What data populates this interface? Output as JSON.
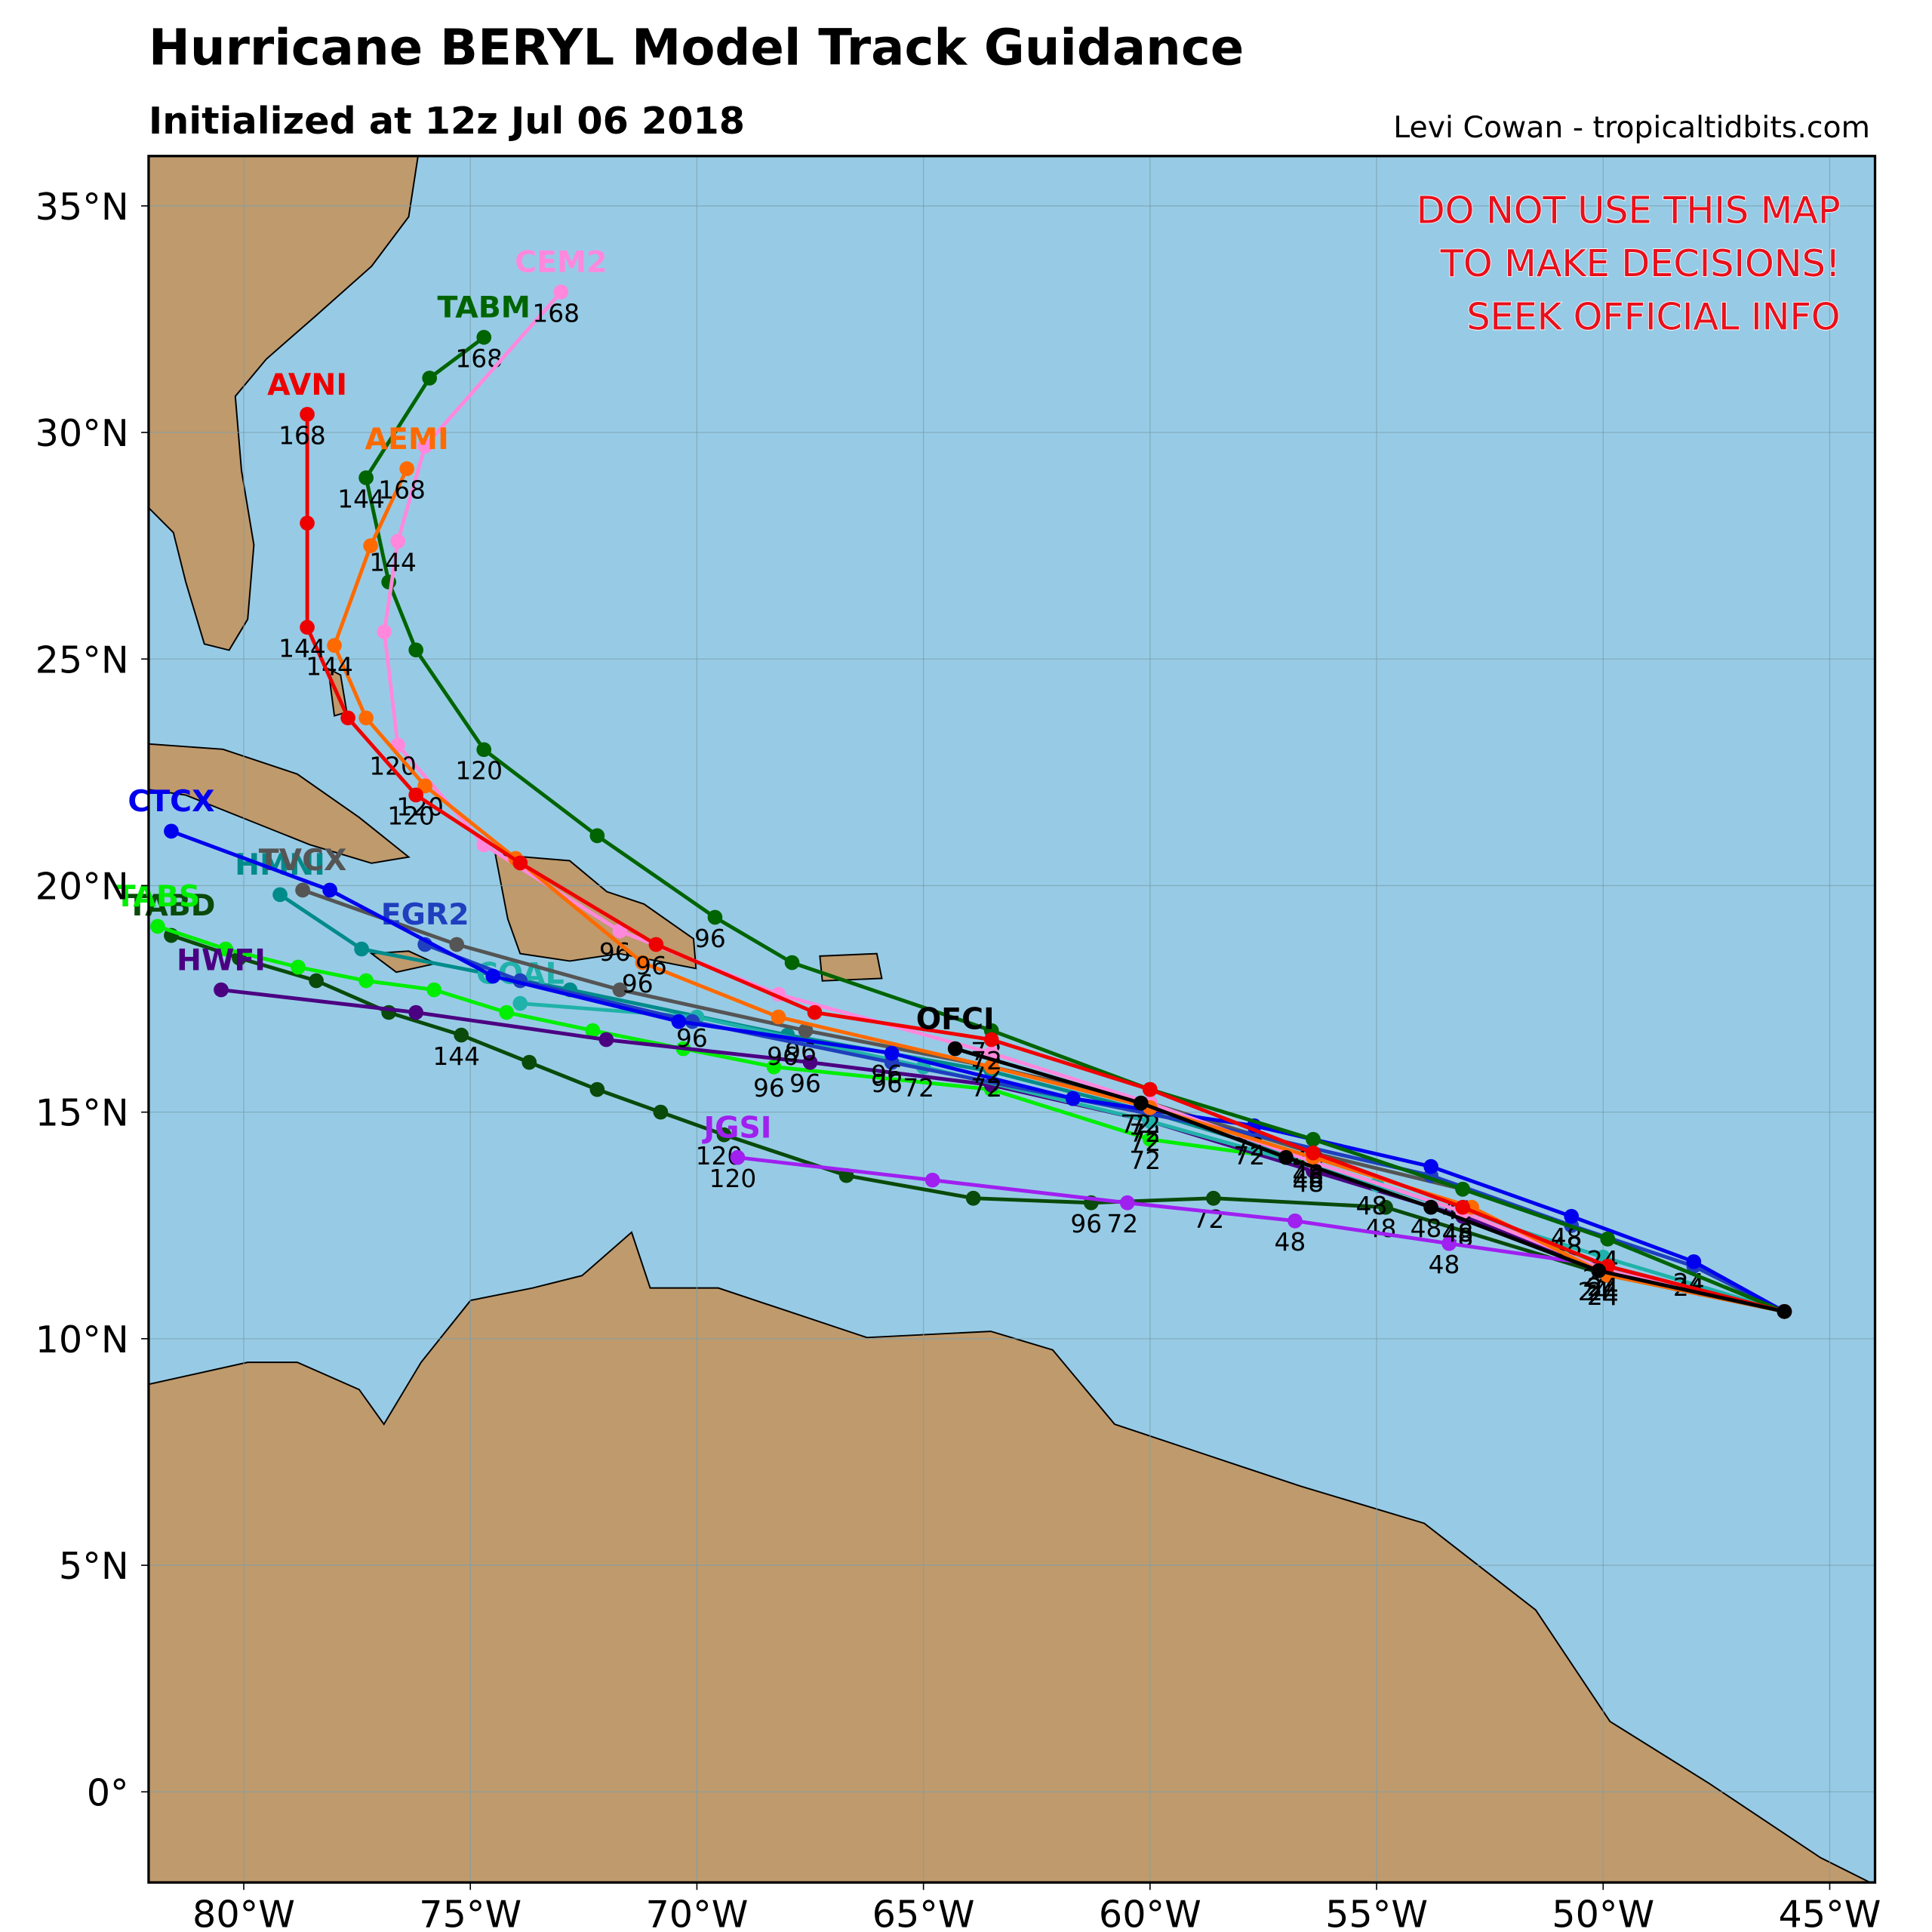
{
  "header": {
    "title": "Hurricane BERYL Model Track Guidance",
    "subtitle": "Initialized at 12z Jul 06 2018",
    "credit": "Levi Cowan - tropicaltidbits.com"
  },
  "warning": [
    "DO NOT USE THIS MAP",
    "TO MAKE DECISIONS!",
    "SEEK OFFICIAL INFO"
  ],
  "map": {
    "type": "track-map",
    "lonlim": [
      -82.1,
      -44.0
    ],
    "latlim": [
      -2.0,
      36.1
    ],
    "grid": true,
    "xticks": [
      {
        "value": -80,
        "label": "80°W"
      },
      {
        "value": -75,
        "label": "75°W"
      },
      {
        "value": -70,
        "label": "70°W"
      },
      {
        "value": -65,
        "label": "65°W"
      },
      {
        "value": -60,
        "label": "60°W"
      },
      {
        "value": -55,
        "label": "55°W"
      },
      {
        "value": -50,
        "label": "50°W"
      },
      {
        "value": -45,
        "label": "45°W"
      }
    ],
    "yticks": [
      {
        "value": 0,
        "label": "0°"
      },
      {
        "value": 5,
        "label": "5°N"
      },
      {
        "value": 10,
        "label": "10°N"
      },
      {
        "value": 15,
        "label": "15°N"
      },
      {
        "value": 20,
        "label": "20°N"
      },
      {
        "value": 25,
        "label": "25°N"
      },
      {
        "value": 30,
        "label": "30°N"
      },
      {
        "value": 35,
        "label": "35°N"
      }
    ],
    "tracks": [
      {
        "name": "TABD",
        "color": "#0a4a0a",
        "points": [
          [
            -46.0,
            10.6
          ],
          [
            -49.9,
            11.4
          ],
          [
            -54.8,
            12.9
          ],
          [
            -58.6,
            13.1
          ],
          [
            -61.3,
            13.0
          ],
          [
            -63.9,
            13.1
          ],
          [
            -66.7,
            13.6
          ],
          [
            -69.4,
            14.5
          ],
          [
            -70.8,
            15.0
          ],
          [
            -72.2,
            15.5
          ],
          [
            -73.7,
            16.1
          ],
          [
            -75.2,
            16.7
          ],
          [
            -76.8,
            17.2
          ],
          [
            -78.4,
            17.9
          ],
          [
            -80.1,
            18.4
          ],
          [
            -81.6,
            18.9
          ]
        ],
        "hours": [
          null,
          24,
          48,
          72,
          96,
          null,
          null,
          120,
          null,
          null,
          null,
          144,
          null,
          null,
          null,
          null
        ]
      },
      {
        "name": "TABS",
        "color": "#00ee00",
        "points": [
          [
            -46.0,
            10.6
          ],
          [
            -49.9,
            11.6
          ],
          [
            -53.1,
            12.8
          ],
          [
            -56.4,
            13.9
          ],
          [
            -60.0,
            14.4
          ],
          [
            -63.5,
            15.5
          ],
          [
            -68.3,
            16.0
          ],
          [
            -70.3,
            16.4
          ],
          [
            -72.3,
            16.8
          ],
          [
            -74.2,
            17.2
          ],
          [
            -75.8,
            17.7
          ],
          [
            -77.3,
            17.9
          ],
          [
            -78.8,
            18.2
          ],
          [
            -80.4,
            18.6
          ],
          [
            -81.9,
            19.1
          ]
        ],
        "hours": [
          null,
          24,
          48,
          null,
          72,
          null,
          96,
          null,
          null,
          null,
          null,
          null,
          null,
          null,
          null
        ]
      },
      {
        "name": "HWFI",
        "color": "#4b0082",
        "points": [
          [
            -46.0,
            10.6
          ],
          [
            -49.9,
            11.5
          ],
          [
            -53.1,
            12.7
          ],
          [
            -56.4,
            13.7
          ],
          [
            -60.0,
            14.8
          ],
          [
            -63.5,
            15.6
          ],
          [
            -67.5,
            16.1
          ],
          [
            -72.0,
            16.6
          ],
          [
            -76.2,
            17.2
          ],
          [
            -80.5,
            17.7
          ]
        ],
        "hours": [
          null,
          24,
          48,
          null,
          72,
          null,
          96,
          null,
          null,
          null
        ]
      },
      {
        "name": "JGSI",
        "color": "#a020f0",
        "points": [
          [
            -46.0,
            10.6
          ],
          [
            -49.9,
            11.6
          ],
          [
            -53.4,
            12.1
          ],
          [
            -56.8,
            12.6
          ],
          [
            -60.5,
            13.0
          ],
          [
            -64.8,
            13.5
          ],
          [
            -69.1,
            14.0
          ]
        ],
        "hours": [
          null,
          24,
          48,
          48,
          72,
          null,
          120
        ]
      },
      {
        "name": "HMNI",
        "color": "#008b8b",
        "points": [
          [
            -46.0,
            10.6
          ],
          [
            -49.9,
            11.5
          ],
          [
            -53.1,
            12.8
          ],
          [
            -56.4,
            13.9
          ],
          [
            -60.0,
            15.0
          ],
          [
            -63.5,
            15.9
          ],
          [
            -68.0,
            16.7
          ],
          [
            -72.8,
            17.7
          ],
          [
            -77.4,
            18.6
          ],
          [
            -79.2,
            19.8
          ]
        ],
        "hours": [
          null,
          24,
          48,
          null,
          72,
          null,
          96,
          null,
          null,
          null
        ]
      },
      {
        "name": "COAL",
        "color": "#20b2aa",
        "points": [
          [
            -46.0,
            10.6
          ],
          [
            -50.0,
            11.8
          ],
          [
            -55.0,
            13.4
          ],
          [
            -60.0,
            14.8
          ],
          [
            -65.0,
            16.0
          ],
          [
            -70.0,
            17.1
          ],
          [
            -73.9,
            17.4
          ]
        ],
        "hours": [
          null,
          24,
          48,
          null,
          72,
          96,
          null
        ]
      },
      {
        "name": "TVCX",
        "color": "#555555",
        "points": [
          [
            -46.0,
            10.6
          ],
          [
            -49.9,
            12.2
          ],
          [
            -53.1,
            13.3
          ],
          [
            -56.4,
            14.1
          ],
          [
            -60.0,
            15.2
          ],
          [
            -63.5,
            16.0
          ],
          [
            -67.6,
            16.8
          ],
          [
            -71.7,
            17.7
          ],
          [
            -75.3,
            18.7
          ],
          [
            -78.7,
            19.9
          ]
        ],
        "hours": [
          null,
          24,
          48,
          null,
          72,
          null,
          96,
          null,
          null,
          null
        ]
      },
      {
        "name": "EGR2",
        "color": "#1f3fbf",
        "points": [
          [
            -46.0,
            10.6
          ],
          [
            -48.0,
            11.6
          ],
          [
            -50.7,
            12.5
          ],
          [
            -53.8,
            13.6
          ],
          [
            -57.7,
            14.5
          ],
          [
            -61.7,
            15.3
          ],
          [
            -65.7,
            16.1
          ],
          [
            -70.1,
            17.0
          ],
          [
            -73.9,
            17.9
          ],
          [
            -76.0,
            18.7
          ]
        ],
        "hours": [
          null,
          24,
          48,
          null,
          72,
          null,
          96,
          null,
          null,
          null
        ]
      },
      {
        "name": "CTCX",
        "color": "#0000ee",
        "points": [
          [
            -46.0,
            10.6
          ],
          [
            -48.0,
            11.7
          ],
          [
            -50.7,
            12.7
          ],
          [
            -53.8,
            13.8
          ],
          [
            -57.7,
            14.7
          ],
          [
            -61.7,
            15.3
          ],
          [
            -65.7,
            16.3
          ],
          [
            -70.4,
            17.0
          ],
          [
            -74.5,
            18.0
          ],
          [
            -78.1,
            19.9
          ],
          [
            -81.6,
            21.2
          ]
        ],
        "hours": [
          null,
          24,
          48,
          null,
          72,
          null,
          96,
          null,
          null,
          null,
          null
        ]
      },
      {
        "name": "TABM",
        "color": "#006400",
        "points": [
          [
            -46.0,
            10.6
          ],
          [
            -49.9,
            12.2
          ],
          [
            -53.1,
            13.3
          ],
          [
            -56.4,
            14.4
          ],
          [
            -60.0,
            15.5
          ],
          [
            -63.5,
            16.8
          ],
          [
            -67.9,
            18.3
          ],
          [
            -69.6,
            19.3
          ],
          [
            -72.2,
            21.1
          ],
          [
            -74.7,
            23.0
          ],
          [
            -76.2,
            25.2
          ],
          [
            -76.8,
            26.7
          ],
          [
            -77.3,
            29.0
          ],
          [
            -75.9,
            31.2
          ],
          [
            -74.7,
            32.1
          ]
        ],
        "hours": [
          null,
          24,
          null,
          48,
          null,
          72,
          null,
          96,
          null,
          120,
          null,
          null,
          144,
          null,
          168
        ]
      },
      {
        "name": "CEM2",
        "color": "#ff88dd",
        "points": [
          [
            -46.0,
            10.6
          ],
          [
            -49.9,
            11.5
          ],
          [
            -53.1,
            12.8
          ],
          [
            -56.4,
            13.9
          ],
          [
            -60.0,
            15.2
          ],
          [
            -63.5,
            16.3
          ],
          [
            -68.2,
            17.6
          ],
          [
            -71.7,
            19.0
          ],
          [
            -74.7,
            20.9
          ],
          [
            -76.6,
            23.1
          ],
          [
            -76.9,
            25.6
          ],
          [
            -76.6,
            27.6
          ],
          [
            -76.0,
            29.7
          ],
          [
            -73.0,
            33.1
          ]
        ],
        "hours": [
          null,
          24,
          null,
          48,
          null,
          72,
          null,
          96,
          null,
          120,
          null,
          144,
          null,
          168
        ]
      },
      {
        "name": "AEMI",
        "color": "#ff6a00",
        "points": [
          [
            -46.0,
            10.6
          ],
          [
            -49.9,
            11.4
          ],
          [
            -52.9,
            12.9
          ],
          [
            -56.4,
            14.0
          ],
          [
            -60.0,
            15.1
          ],
          [
            -63.5,
            16.0
          ],
          [
            -68.2,
            17.1
          ],
          [
            -71.2,
            18.3
          ],
          [
            -74.0,
            20.6
          ],
          [
            -76.0,
            22.2
          ],
          [
            -77.3,
            23.7
          ],
          [
            -78.0,
            25.3
          ],
          [
            -77.2,
            27.5
          ],
          [
            -76.4,
            29.2
          ]
        ],
        "hours": [
          null,
          24,
          null,
          48,
          null,
          72,
          null,
          96,
          null,
          120,
          null,
          144,
          null,
          168
        ]
      },
      {
        "name": "AVNI",
        "color": "#ee0000",
        "points": [
          [
            -46.0,
            10.6
          ],
          [
            -49.9,
            11.6
          ],
          [
            -53.1,
            12.9
          ],
          [
            -56.4,
            14.1
          ],
          [
            -60.0,
            15.5
          ],
          [
            -63.5,
            16.6
          ],
          [
            -67.4,
            17.2
          ],
          [
            -70.9,
            18.7
          ],
          [
            -73.9,
            20.5
          ],
          [
            -76.2,
            22.0
          ],
          [
            -77.7,
            23.7
          ],
          [
            -78.6,
            25.7
          ],
          [
            -78.6,
            28.0
          ],
          [
            -78.6,
            30.4
          ]
        ],
        "hours": [
          null,
          24,
          null,
          48,
          null,
          72,
          null,
          96,
          null,
          120,
          null,
          144,
          null,
          168
        ]
      },
      {
        "name": "OFCI",
        "color": "#000000",
        "points": [
          [
            -46.0,
            10.6
          ],
          [
            -50.1,
            11.5
          ],
          [
            -53.8,
            12.9
          ],
          [
            -57.0,
            14.0
          ],
          [
            -60.2,
            15.2
          ],
          [
            -64.3,
            16.4
          ]
        ],
        "hours": [
          null,
          24,
          48,
          null,
          72,
          null
        ]
      }
    ]
  }
}
